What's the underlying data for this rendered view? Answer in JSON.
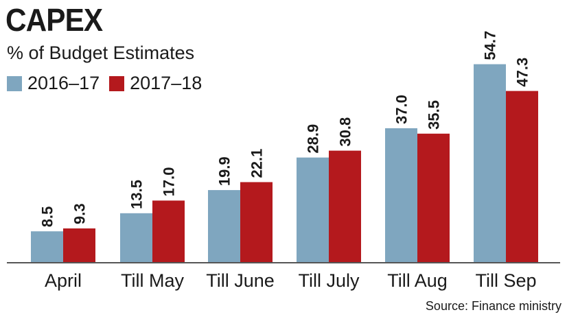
{
  "chart_data": {
    "type": "bar",
    "title": "CAPEX",
    "subtitle": "% of Budget Estimates",
    "categories": [
      "April",
      "Till May",
      "Till June",
      "Till July",
      "Till Aug",
      "Till Sep"
    ],
    "series": [
      {
        "name": "2016–17",
        "color": "#7fa6bf",
        "values": [
          8.5,
          13.5,
          19.9,
          28.9,
          37.0,
          54.7
        ],
        "labels": [
          "8.5",
          "13.5",
          "19.9",
          "28.9",
          "37.0",
          "54.7"
        ]
      },
      {
        "name": "2017–18",
        "color": "#b4191d",
        "values": [
          9.3,
          17.0,
          22.1,
          30.8,
          35.5,
          47.3
        ],
        "labels": [
          "9.3",
          "17.0",
          "22.1",
          "30.8",
          "35.5",
          "47.3"
        ]
      }
    ],
    "ylim": [
      0,
      55
    ],
    "grid": false,
    "legend_position": "top-left",
    "source": "Source: Finance ministry"
  }
}
